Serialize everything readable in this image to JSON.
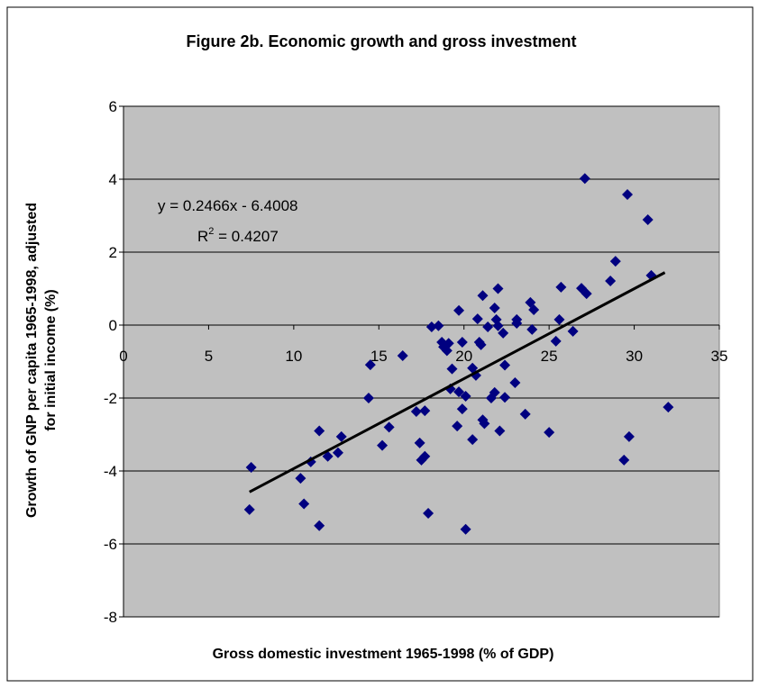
{
  "chart_data": {
    "type": "scatter",
    "title": "Figure 2b. Economic growth and gross investment",
    "x_label": "Gross domestic investment 1965-1998 (% of GDP)",
    "y_label": [
      "Growth of GNP per capita 1965-1998, adjusted",
      "for initial income (%)"
    ],
    "equation_label": "y = 0.2466x - 6.4008",
    "r_squared_label": {
      "base": "R",
      "sup": "2",
      "rest": " = 0.4207"
    },
    "trendline": {
      "slope": 0.2466,
      "intercept": -6.4008,
      "x_range": [
        7.4,
        31.8
      ],
      "color": "#000000"
    },
    "color": "#000080",
    "plot_background": "#c0c0c0",
    "grid": true,
    "xlim": [
      0,
      35
    ],
    "xticks": [
      0,
      5,
      10,
      15,
      20,
      25,
      30,
      35
    ],
    "ylim": [
      -8,
      6
    ],
    "yticks": [
      -8,
      -6,
      -4,
      -2,
      0,
      2,
      4,
      6
    ],
    "x": [
      7.5,
      7.4,
      10.4,
      10.6,
      11.0,
      11.5,
      11.5,
      12.0,
      12.6,
      12.8,
      14.5,
      14.4,
      15.2,
      15.6,
      16.4,
      17.2,
      17.4,
      17.7,
      17.5,
      17.7,
      17.9,
      18.1,
      18.5,
      18.7,
      18.8,
      19.1,
      19.0,
      19.3,
      19.2,
      19.7,
      19.7,
      19.6,
      19.9,
      19.9,
      20.1,
      20.1,
      20.5,
      20.5,
      20.7,
      20.8,
      20.9,
      21.0,
      21.1,
      21.2,
      21.1,
      21.4,
      21.6,
      21.8,
      21.8,
      21.9,
      22.0,
      22.0,
      22.1,
      22.3,
      22.4,
      22.4,
      23.0,
      23.1,
      23.1,
      23.6,
      23.9,
      24.0,
      24.1,
      25.0,
      25.4,
      25.6,
      25.7,
      26.4,
      26.9,
      27.1,
      27.2,
      28.6,
      28.9,
      29.4,
      29.6,
      29.7,
      30.8,
      31.0,
      32.0
    ],
    "values": [
      -3.9,
      -5.06,
      -4.2,
      -4.9,
      -3.75,
      -2.9,
      -5.5,
      -3.6,
      -3.5,
      -3.06,
      -1.09,
      -2.0,
      -3.3,
      -2.8,
      -0.84,
      -2.37,
      -3.23,
      -2.35,
      -3.7,
      -3.6,
      -5.16,
      -0.05,
      -0.02,
      -0.47,
      -0.6,
      -0.5,
      -0.7,
      -1.2,
      -1.75,
      0.4,
      -1.83,
      -2.77,
      -0.47,
      -2.3,
      -1.95,
      -5.6,
      -1.18,
      -3.14,
      -1.38,
      0.17,
      -0.47,
      -0.54,
      0.81,
      -2.7,
      -2.6,
      -0.05,
      -2.0,
      0.47,
      -1.85,
      0.15,
      1.0,
      -0.02,
      -2.9,
      -0.22,
      -1.1,
      -1.98,
      -1.58,
      0.15,
      0.05,
      -2.44,
      0.62,
      -0.12,
      0.42,
      -2.94,
      -0.44,
      0.15,
      1.04,
      -0.17,
      1.01,
      4.02,
      0.86,
      1.21,
      1.75,
      -3.7,
      3.58,
      -3.06,
      2.89,
      1.36,
      -2.25
    ]
  }
}
